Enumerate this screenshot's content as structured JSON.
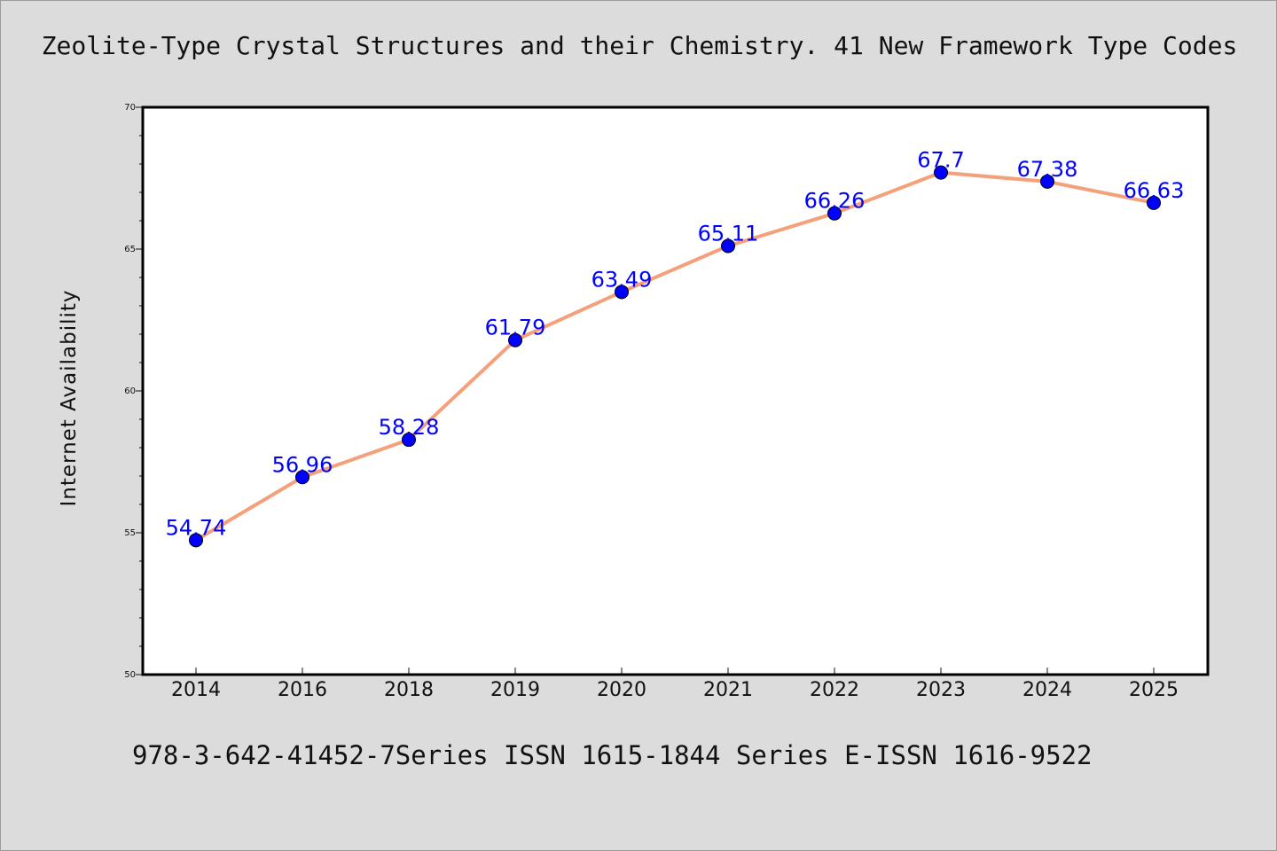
{
  "chart_data": {
    "type": "line",
    "title": "Zeolite-Type Crystal Structures and their Chemistry. 41 New Framework Type Codes",
    "footer": "978-3-642-41452-7Series ISSN 1615-1844 Series E-ISSN 1616-9522",
    "xlabel": "",
    "ylabel": "Internet Availability",
    "categories": [
      "2014",
      "2016",
      "2018",
      "2019",
      "2020",
      "2021",
      "2022",
      "2023",
      "2024",
      "2025"
    ],
    "series": [
      {
        "values": [
          54.74,
          56.96,
          58.28,
          61.79,
          63.49,
          65.11,
          66.26,
          67.7,
          67.38,
          66.63
        ],
        "data_labels": [
          "54.74",
          "56.96",
          "58.28",
          "61.79",
          "63.49",
          "65.11",
          "66.26",
          "67.7",
          "67.38",
          "66.63"
        ],
        "line_color": "#f4a07a",
        "marker_color": "#0000ff"
      }
    ],
    "ylim": [
      50,
      70
    ],
    "y_major_ticks": [
      50,
      55,
      60,
      65,
      70
    ],
    "y_minor_step": 1,
    "grid": false,
    "legend": "none"
  }
}
